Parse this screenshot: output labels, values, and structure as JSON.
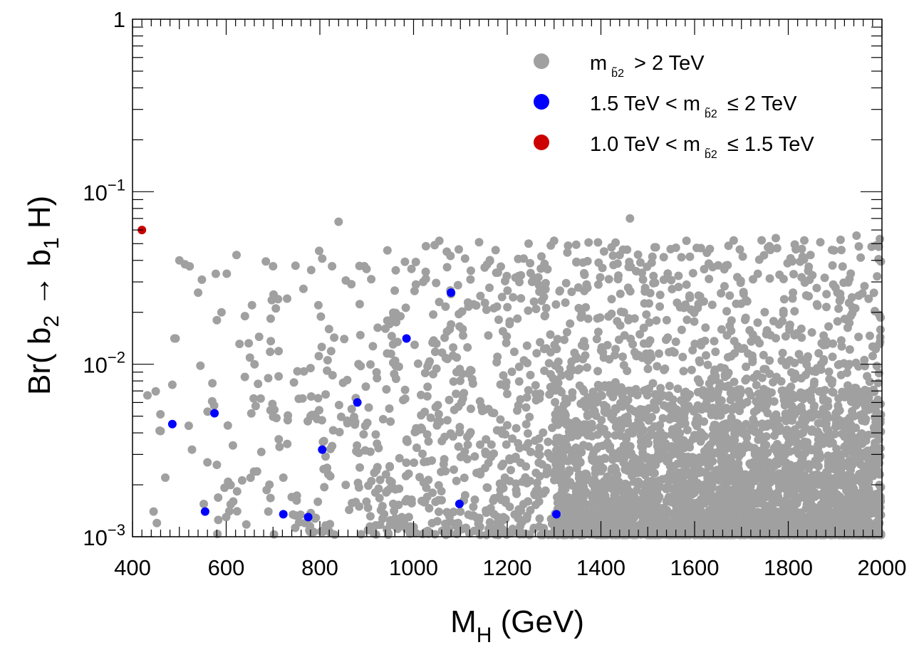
{
  "chart_data": {
    "type": "scatter",
    "title": "",
    "xlabel": "M_H (GeV)",
    "ylabel": "Br( b̃2 → b̃1 H)",
    "xlim": [
      400,
      2000
    ],
    "ylim": [
      0.001,
      1
    ],
    "yscale": "log",
    "x_ticks": [
      400,
      600,
      800,
      1000,
      1200,
      1400,
      1600,
      1800,
      2000
    ],
    "y_tick_labels": {
      "one": "1",
      "base": "10",
      "exp_minus1": "−1",
      "exp_minus2": "−2",
      "exp_minus3": "−3"
    },
    "axis_title_parts": {
      "x_main": "M",
      "x_sub": "H",
      "x_unit": " (GeV)",
      "y_prefix": "Br( b",
      "y_sub2": "2",
      "y_arrow": " → ",
      "y_b": "b",
      "y_sub1": "1",
      "y_suffix": " H)"
    },
    "legend_position": "top-right",
    "series": [
      {
        "name": "m b̃2 > 2 TeV",
        "color": "#a0a0a0",
        "note": "dense cloud of points; representative sample below, remaining density generated procedurally",
        "points": [
          [
            432,
            0.0066
          ],
          [
            445,
            0.0014
          ],
          [
            452,
            0.0012
          ],
          [
            460,
            0.0041
          ],
          [
            470,
            0.0022
          ],
          [
            485,
            0.0076
          ],
          [
            492,
            0.0141
          ],
          [
            500,
            0.04
          ],
          [
            512,
            0.038
          ],
          [
            520,
            0.0044
          ],
          [
            527,
            0.0032
          ],
          [
            540,
            0.026
          ],
          [
            545,
            0.0098
          ],
          [
            560,
            0.0027
          ],
          [
            570,
            0.0061
          ],
          [
            580,
            0.018
          ],
          [
            590,
            0.02
          ],
          [
            600,
            0.0013
          ],
          [
            615,
            0.0016
          ],
          [
            622,
            0.043
          ],
          [
            640,
            0.019
          ],
          [
            655,
            0.022
          ],
          [
            668,
            0.0077
          ],
          [
            675,
            0.0031
          ],
          [
            690,
            0.0014
          ],
          [
            700,
            0.037
          ],
          [
            712,
            0.0085
          ],
          [
            722,
            0.0022
          ],
          [
            730,
            0.024
          ],
          [
            740,
            0.0017
          ],
          [
            755,
            0.0063
          ],
          [
            768,
            0.0012
          ],
          [
            780,
            0.0095
          ],
          [
            790,
            0.0051
          ],
          [
            805,
            0.041
          ],
          [
            818,
            0.0023
          ],
          [
            826,
            0.037
          ],
          [
            840,
            0.067
          ],
          [
            852,
            0.014
          ],
          [
            868,
            0.0055
          ],
          [
            880,
            0.0031
          ],
          [
            895,
            0.037
          ],
          [
            910,
            0.0021
          ],
          [
            922,
            0.0083
          ],
          [
            935,
            0.0048
          ],
          [
            950,
            0.0019
          ],
          [
            962,
            0.035
          ],
          [
            978,
            0.0062
          ],
          [
            990,
            0.0013
          ],
          [
            1005,
            0.029
          ],
          [
            1018,
            0.0042
          ],
          [
            1030,
            0.0074
          ],
          [
            1045,
            0.049
          ],
          [
            1055,
            0.052
          ],
          [
            1068,
            0.0024
          ],
          [
            1080,
            0.017
          ],
          [
            1095,
            0.0012
          ],
          [
            1110,
            0.041
          ],
          [
            1125,
            0.0082
          ],
          [
            1140,
            0.051
          ],
          [
            1160,
            0.0055
          ],
          [
            1180,
            0.034
          ],
          [
            1195,
            0.0022
          ],
          [
            1215,
            0.0118
          ],
          [
            1235,
            0.041
          ],
          [
            1250,
            0.0031
          ],
          [
            1268,
            0.0016
          ],
          [
            1280,
            0.019
          ],
          [
            1300,
            0.052
          ],
          [
            1315,
            0.0046
          ],
          [
            1330,
            0.0088
          ],
          [
            1350,
            0.0026
          ],
          [
            1365,
            0.033
          ],
          [
            1385,
            0.0015
          ],
          [
            1400,
            0.0024
          ],
          [
            1420,
            0.0068
          ],
          [
            1440,
            0.043
          ],
          [
            1455,
            0.0019
          ],
          [
            1462,
            0.07
          ],
          [
            1480,
            0.0051
          ],
          [
            1500,
            0.0011
          ],
          [
            1510,
            0.042
          ],
          [
            1530,
            0.0036
          ],
          [
            1545,
            0.0021
          ],
          [
            1560,
            0.0135
          ],
          [
            1578,
            0.0029
          ],
          [
            1590,
            0.042
          ],
          [
            1605,
            0.0044
          ],
          [
            1620,
            0.0017
          ],
          [
            1640,
            0.0081
          ],
          [
            1660,
            0.0024
          ],
          [
            1675,
            0.025
          ],
          [
            1690,
            0.0033
          ],
          [
            1705,
            0.0014
          ],
          [
            1720,
            0.0066
          ],
          [
            1740,
            0.0022
          ],
          [
            1760,
            0.0105
          ],
          [
            1780,
            0.0031
          ],
          [
            1795,
            0.0013
          ],
          [
            1810,
            0.026
          ],
          [
            1830,
            0.0048
          ],
          [
            1850,
            0.0019
          ],
          [
            1870,
            0.0093
          ],
          [
            1890,
            0.0026
          ],
          [
            1905,
            0.026
          ],
          [
            1920,
            0.0038
          ],
          [
            1935,
            0.0016
          ],
          [
            1950,
            0.0144
          ],
          [
            1965,
            0.0029
          ],
          [
            1978,
            0.0055
          ],
          [
            1990,
            0.0011
          ],
          [
            1996,
            0.0135
          ]
        ]
      },
      {
        "name": "1.5 TeV < m b̃2 ≤ 2 TeV",
        "color": "#0000ff",
        "points": [
          [
            485,
            0.0045
          ],
          [
            555,
            0.0014
          ],
          [
            575,
            0.0052
          ],
          [
            722,
            0.00135
          ],
          [
            775,
            0.0013
          ],
          [
            805,
            0.0032
          ],
          [
            880,
            0.006
          ],
          [
            985,
            0.0141
          ],
          [
            1080,
            0.026
          ],
          [
            1098,
            0.00155
          ],
          [
            1305,
            0.00135
          ]
        ]
      },
      {
        "name": "1.0 TeV < m b̃2 ≤ 1.5 TeV",
        "color": "#cc0000",
        "points": [
          [
            420,
            0.06
          ]
        ]
      }
    ],
    "legend": [
      {
        "pre": "m",
        "sub": "b̃2",
        "post": " > 2 TeV",
        "color": "#a0a0a0"
      },
      {
        "pre": "1.5 TeV < m",
        "sub": "b̃2",
        "post": " ≤ 2 TeV",
        "color": "#0000ff"
      },
      {
        "pre": "1.0 TeV < m",
        "sub": "b̃2",
        "post": " ≤ 1.5 TeV",
        "color": "#cc0000"
      }
    ]
  }
}
